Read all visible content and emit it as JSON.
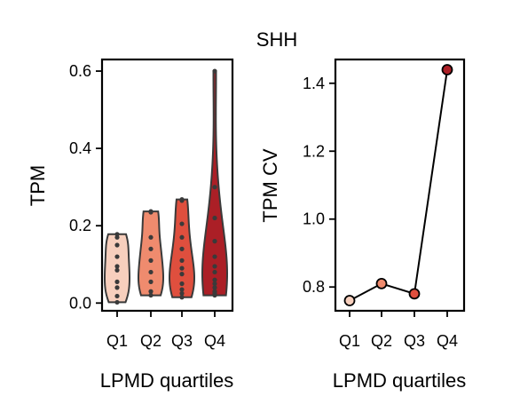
{
  "chart_data": {
    "title": "SHH",
    "panels": [
      {
        "type": "violin",
        "xlabel": "LPMD quartiles",
        "ylabel": "TPM",
        "categories": [
          "Q1",
          "Q2",
          "Q3",
          "Q4"
        ],
        "ylim": [
          -0.02,
          0.63
        ],
        "yticks": [
          0.0,
          0.2,
          0.4,
          0.6
        ],
        "ytick_labels": [
          "0.0",
          "0.2",
          "0.4",
          "0.6"
        ],
        "colors": [
          "#f7cfbd",
          "#ef8b6e",
          "#df4f3e",
          "#ab1f26"
        ],
        "series": [
          {
            "category": "Q1",
            "values": [
              0.002,
              0.018,
              0.04,
              0.055,
              0.085,
              0.095,
              0.12,
              0.15,
              0.17,
              0.178
            ]
          },
          {
            "category": "Q2",
            "values": [
              0.02,
              0.03,
              0.055,
              0.08,
              0.11,
              0.14,
              0.17,
              0.235,
              0.237
            ]
          },
          {
            "category": "Q3",
            "values": [
              0.015,
              0.025,
              0.035,
              0.05,
              0.075,
              0.09,
              0.11,
              0.14,
              0.17,
              0.205,
              0.265,
              0.268
            ]
          },
          {
            "category": "Q4",
            "values": [
              0.02,
              0.025,
              0.03,
              0.04,
              0.05,
              0.06,
              0.08,
              0.095,
              0.12,
              0.16,
              0.22,
              0.3,
              0.6
            ]
          }
        ]
      },
      {
        "type": "line",
        "xlabel": "LPMD quartiles",
        "ylabel": "TPM CV",
        "categories": [
          "Q1",
          "Q2",
          "Q3",
          "Q4"
        ],
        "values": [
          0.76,
          0.81,
          0.78,
          1.44
        ],
        "ylim": [
          0.73,
          1.47
        ],
        "yticks": [
          0.8,
          1.0,
          1.2,
          1.4
        ],
        "ytick_labels": [
          "0.8",
          "1.0",
          "1.2",
          "1.4"
        ],
        "colors": [
          "#f7cfbd",
          "#ef8b6e",
          "#df4f3e",
          "#ab1f26"
        ]
      }
    ]
  }
}
